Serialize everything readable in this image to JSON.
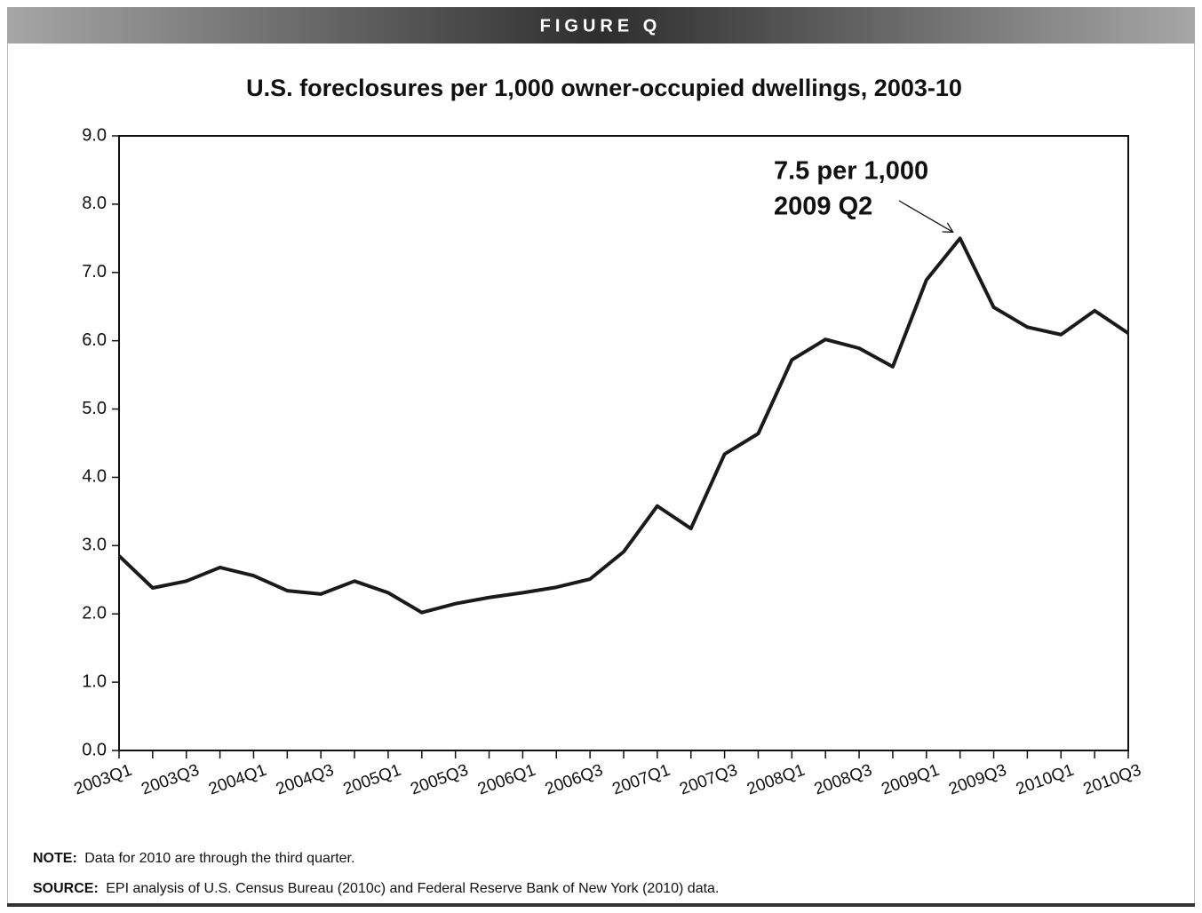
{
  "header": {
    "label": "FIGURE Q"
  },
  "chart_data": {
    "type": "line",
    "title": "U.S. foreclosures per 1,000 owner-occupied dwellings, 2003-10",
    "categories": [
      "2003Q1",
      null,
      "2003Q3",
      null,
      "2004Q1",
      null,
      "2004Q3",
      null,
      "2005Q1",
      null,
      "2005Q3",
      null,
      "2006Q1",
      null,
      "2006Q3",
      null,
      "2007Q1",
      null,
      "2007Q3",
      null,
      "2008Q1",
      null,
      "2008Q3",
      null,
      "2009Q1",
      null,
      "2009Q3",
      null,
      "2010Q1",
      null,
      "2010Q3"
    ],
    "series": [
      {
        "color": "#1a1a1a",
        "values": [
          2.85,
          2.38,
          2.48,
          2.68,
          2.56,
          2.34,
          2.29,
          2.48,
          2.31,
          2.02,
          2.15,
          2.24,
          2.31,
          2.39,
          2.51,
          2.91,
          3.58,
          3.25,
          4.34,
          4.64,
          5.72,
          6.02,
          5.89,
          5.62,
          6.89,
          7.5,
          6.49,
          6.2,
          6.09,
          6.44,
          6.11
        ]
      }
    ],
    "ylim": [
      0,
      9
    ],
    "yticks": [
      {
        "value": 0,
        "label": "0.0"
      },
      {
        "value": 1,
        "label": "1.0"
      },
      {
        "value": 2,
        "label": "2.0"
      },
      {
        "value": 3,
        "label": "3.0"
      },
      {
        "value": 4,
        "label": "4.0"
      },
      {
        "value": 5,
        "label": "5.0"
      },
      {
        "value": 6,
        "label": "6.0"
      },
      {
        "value": 7,
        "label": "7.0"
      },
      {
        "value": 8,
        "label": "8.0"
      },
      {
        "value": 9,
        "label": "9.0"
      }
    ],
    "grid": false,
    "annotations": [
      {
        "lines": [
          "7.5 per 1,000",
          "2009 Q2"
        ],
        "index": 25
      }
    ]
  },
  "footer": {
    "note_label": "NOTE:",
    "note": "Data for 2010 are through the third quarter.",
    "source_label": "SOURCE:",
    "source": "EPI analysis of U.S. Census Bureau (2010c) and Federal Reserve Bank of New York (2010) data."
  }
}
